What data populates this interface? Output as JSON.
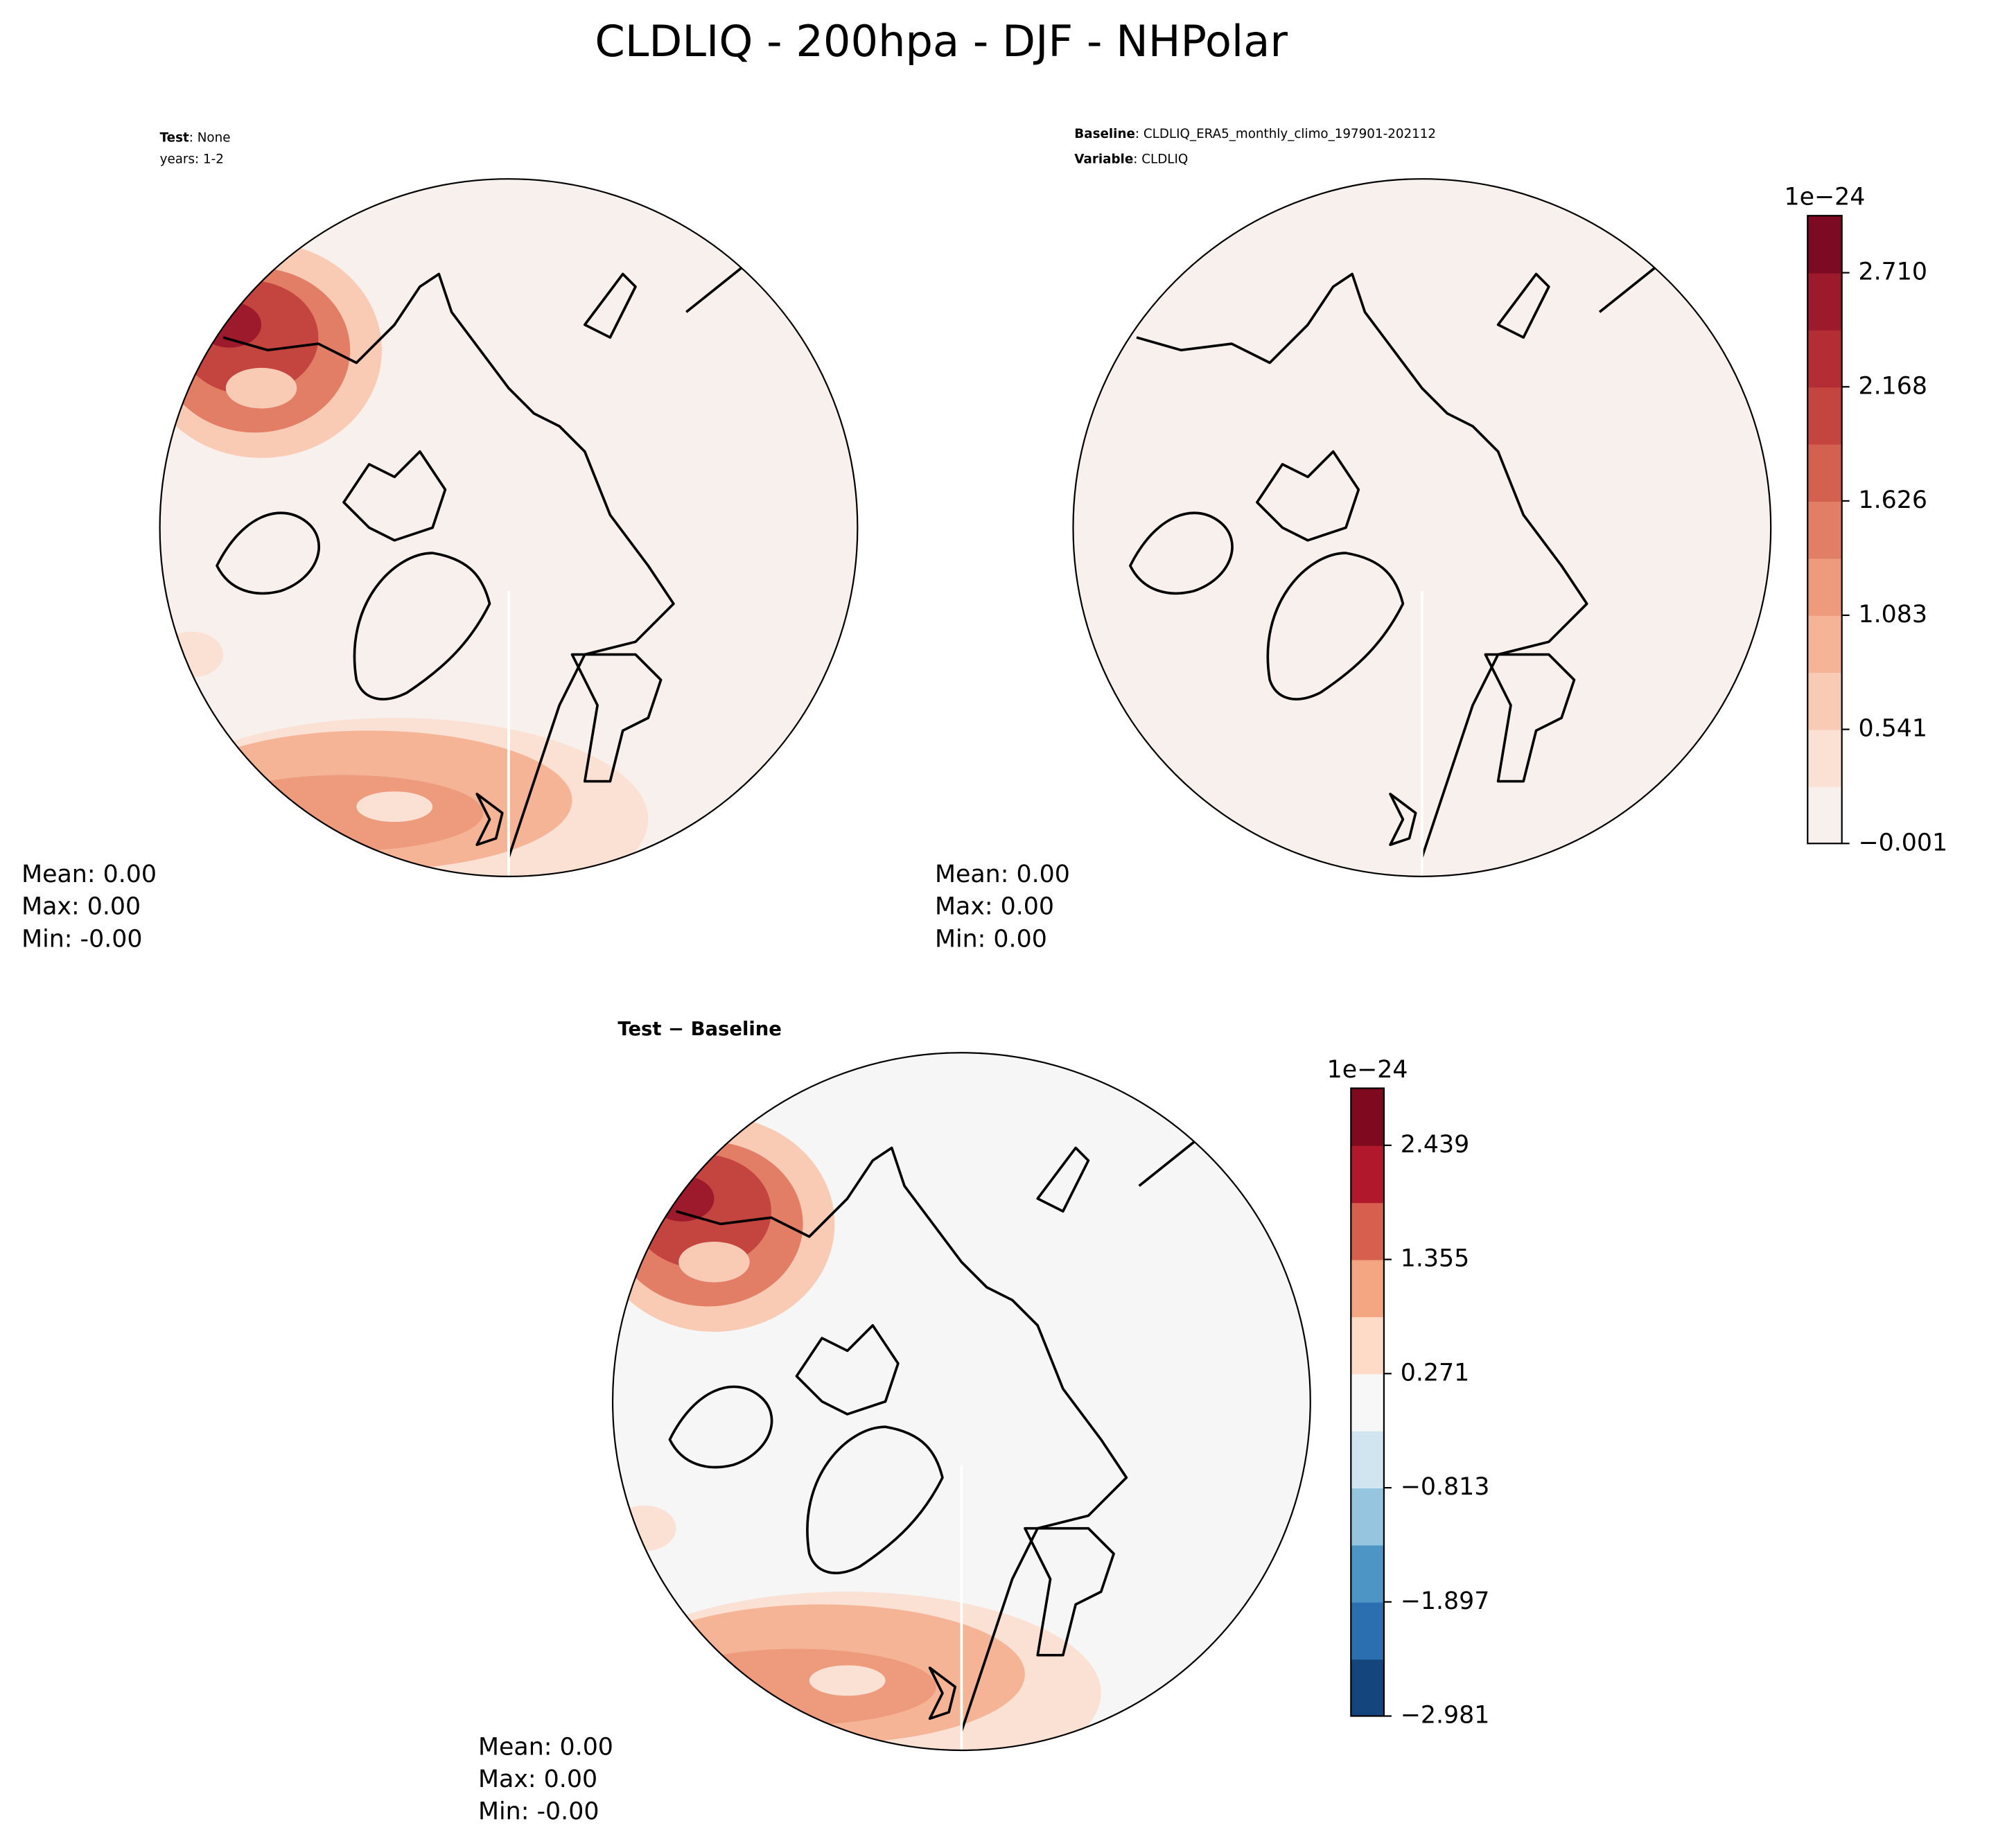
{
  "title": "CLDLIQ - 200hpa - DJF - NHPolar",
  "panels": [
    {
      "header": [
        {
          "key": "Test",
          "value": ": None"
        },
        {
          "key": null,
          "value": "years: 1-2"
        }
      ],
      "stats": [
        "Mean:  0.00",
        "Max:  0.00",
        "Min: -0.00"
      ]
    },
    {
      "header": [
        {
          "key": "Baseline",
          "value": ": CLDLIQ_ERA5_monthly_climo_197901-202112"
        },
        {
          "key": "Variable",
          "value": ": CLDLIQ"
        }
      ],
      "stats": [
        "Mean:  0.00",
        "Max:  0.00",
        "Min:  0.00"
      ]
    },
    {
      "title": "Test − Baseline",
      "stats": [
        "Mean:  0.00",
        "Max:  0.00",
        "Min: -0.00"
      ]
    }
  ],
  "colorbars": [
    {
      "offset": "1e−24",
      "lim": [
        -0.001,
        2.981
      ],
      "ticks": [
        {
          "value": -0.001,
          "label": "−0.001"
        },
        0.541,
        1.083,
        1.626,
        2.168,
        {
          "value": 2.71,
          "label": "2.710"
        }
      ],
      "colors": [
        "#f7f0ec",
        "#fbe0d4",
        "#f9cbb4",
        "#f6b496",
        "#ee9a7c",
        "#e27e66",
        "#d4614f",
        "#c4443f",
        "#b52d34",
        "#9c1a2b",
        "#7c0a22"
      ]
    },
    {
      "offset": "1e−24",
      "lim": [
        -2.981,
        2.981
      ],
      "ticks": [
        {
          "value": -2.981,
          "label": "−2.981"
        },
        {
          "value": -1.897,
          "label": "−1.897"
        },
        {
          "value": -0.813,
          "label": "−0.813"
        },
        0.271,
        1.355,
        2.439
      ],
      "colors": [
        "#15457d",
        "#2c6fb0",
        "#4c95c4",
        "#96c5df",
        "#d1e5f0",
        "#f7f7f7",
        "#fddbc7",
        "#f4a582",
        "#d6604d",
        "#b2182b",
        "#7f0a20"
      ]
    }
  ]
}
